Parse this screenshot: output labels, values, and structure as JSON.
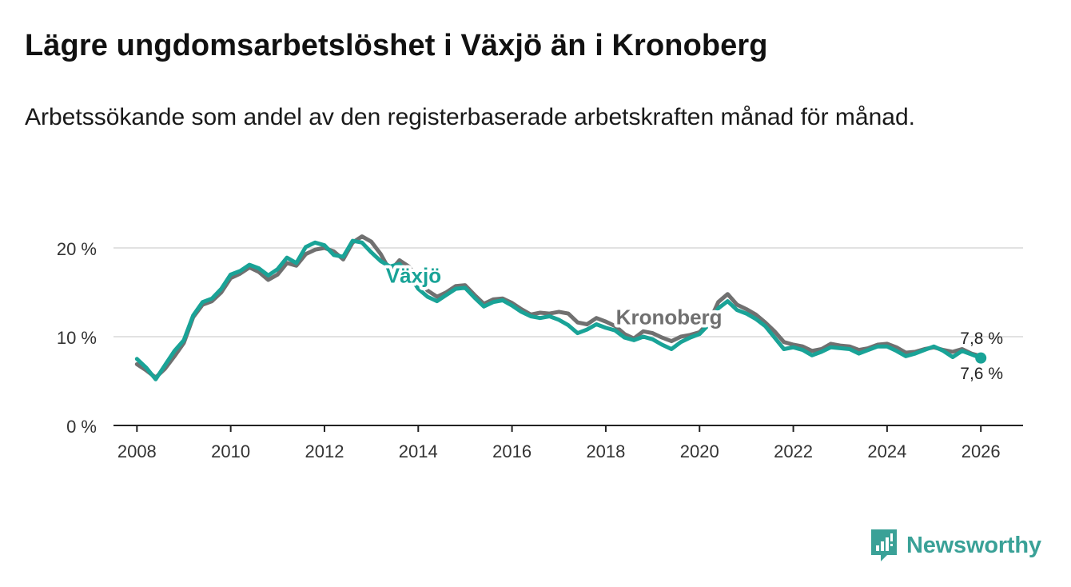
{
  "title": "Lägre ungdomsarbetslöshet i Växjö än i Kronoberg",
  "subtitle": "Arbetssökande som andel av den registerbaserade arbetskraften månad för månad.",
  "brand": {
    "name": "Newsworthy",
    "color": "#3aa197",
    "icon": "newsworthy-logo-icon"
  },
  "chart_data": {
    "type": "line",
    "title": "Lägre ungdomsarbetslöshet i Växjö än i Kronoberg",
    "xlabel": "",
    "ylabel": "",
    "xlim": [
      2007.5,
      2026.9
    ],
    "ylim": [
      0,
      20
    ],
    "grid": true,
    "x_ticks": [
      2008,
      2010,
      2012,
      2014,
      2016,
      2018,
      2020,
      2022,
      2024,
      2026
    ],
    "x_tick_labels": [
      "2008",
      "2010",
      "2012",
      "2014",
      "2016",
      "2018",
      "2020",
      "2022",
      "2024",
      "2026"
    ],
    "y_ticks": [
      0,
      10,
      20
    ],
    "y_tick_labels": [
      "0 %",
      "10 %",
      "20 %"
    ],
    "series": [
      {
        "name": "Kronoberg",
        "color": "#707070",
        "end_label": "7,8 %",
        "points": [
          [
            2008.0,
            6.9
          ],
          [
            2008.2,
            6.2
          ],
          [
            2008.4,
            5.4
          ],
          [
            2008.6,
            6.4
          ],
          [
            2008.8,
            7.8
          ],
          [
            2009.0,
            9.3
          ],
          [
            2009.2,
            12.2
          ],
          [
            2009.4,
            13.6
          ],
          [
            2009.6,
            14.0
          ],
          [
            2009.8,
            15.0
          ],
          [
            2010.0,
            16.6
          ],
          [
            2010.2,
            17.1
          ],
          [
            2010.4,
            17.8
          ],
          [
            2010.6,
            17.3
          ],
          [
            2010.8,
            16.4
          ],
          [
            2011.0,
            17.0
          ],
          [
            2011.2,
            18.3
          ],
          [
            2011.4,
            18.0
          ],
          [
            2011.6,
            19.3
          ],
          [
            2011.8,
            19.8
          ],
          [
            2012.0,
            20.0
          ],
          [
            2012.2,
            19.6
          ],
          [
            2012.4,
            18.7
          ],
          [
            2012.6,
            20.6
          ],
          [
            2012.8,
            21.3
          ],
          [
            2013.0,
            20.7
          ],
          [
            2013.2,
            19.3
          ],
          [
            2013.4,
            17.4
          ],
          [
            2013.6,
            18.6
          ],
          [
            2013.8,
            17.9
          ],
          [
            2014.0,
            16.4
          ],
          [
            2014.2,
            15.2
          ],
          [
            2014.4,
            14.5
          ],
          [
            2014.6,
            15.0
          ],
          [
            2014.8,
            15.7
          ],
          [
            2015.0,
            15.8
          ],
          [
            2015.2,
            14.7
          ],
          [
            2015.4,
            13.7
          ],
          [
            2015.6,
            14.2
          ],
          [
            2015.8,
            14.3
          ],
          [
            2016.0,
            13.8
          ],
          [
            2016.2,
            13.1
          ],
          [
            2016.4,
            12.5
          ],
          [
            2016.6,
            12.7
          ],
          [
            2016.8,
            12.6
          ],
          [
            2017.0,
            12.8
          ],
          [
            2017.2,
            12.6
          ],
          [
            2017.4,
            11.6
          ],
          [
            2017.6,
            11.4
          ],
          [
            2017.8,
            12.1
          ],
          [
            2018.0,
            11.7
          ],
          [
            2018.2,
            11.2
          ],
          [
            2018.4,
            10.3
          ],
          [
            2018.6,
            9.8
          ],
          [
            2018.8,
            10.6
          ],
          [
            2019.0,
            10.4
          ],
          [
            2019.2,
            9.9
          ],
          [
            2019.4,
            9.5
          ],
          [
            2019.6,
            10.0
          ],
          [
            2019.8,
            10.2
          ],
          [
            2020.0,
            10.5
          ],
          [
            2020.2,
            11.6
          ],
          [
            2020.4,
            13.9
          ],
          [
            2020.6,
            14.8
          ],
          [
            2020.8,
            13.6
          ],
          [
            2021.0,
            13.1
          ],
          [
            2021.2,
            12.5
          ],
          [
            2021.4,
            11.6
          ],
          [
            2021.6,
            10.6
          ],
          [
            2021.8,
            9.4
          ],
          [
            2022.0,
            9.1
          ],
          [
            2022.2,
            8.9
          ],
          [
            2022.4,
            8.4
          ],
          [
            2022.6,
            8.6
          ],
          [
            2022.8,
            9.2
          ],
          [
            2023.0,
            9.0
          ],
          [
            2023.2,
            8.9
          ],
          [
            2023.4,
            8.5
          ],
          [
            2023.6,
            8.7
          ],
          [
            2023.8,
            9.1
          ],
          [
            2024.0,
            9.2
          ],
          [
            2024.2,
            8.8
          ],
          [
            2024.4,
            8.2
          ],
          [
            2024.6,
            8.3
          ],
          [
            2024.8,
            8.6
          ],
          [
            2025.0,
            8.8
          ],
          [
            2025.2,
            8.5
          ],
          [
            2025.4,
            8.3
          ],
          [
            2025.6,
            8.6
          ],
          [
            2025.8,
            8.1
          ],
          [
            2026.0,
            7.8
          ]
        ]
      },
      {
        "name": "Växjö",
        "color": "#19a397",
        "end_label": "7,6 %",
        "points": [
          [
            2008.0,
            7.5
          ],
          [
            2008.2,
            6.5
          ],
          [
            2008.4,
            5.2
          ],
          [
            2008.6,
            6.8
          ],
          [
            2008.8,
            8.4
          ],
          [
            2009.0,
            9.6
          ],
          [
            2009.2,
            12.4
          ],
          [
            2009.4,
            13.9
          ],
          [
            2009.6,
            14.3
          ],
          [
            2009.8,
            15.4
          ],
          [
            2010.0,
            17.0
          ],
          [
            2010.2,
            17.4
          ],
          [
            2010.4,
            18.1
          ],
          [
            2010.6,
            17.7
          ],
          [
            2010.8,
            16.9
          ],
          [
            2011.0,
            17.6
          ],
          [
            2011.2,
            18.9
          ],
          [
            2011.4,
            18.3
          ],
          [
            2011.6,
            20.1
          ],
          [
            2011.8,
            20.6
          ],
          [
            2012.0,
            20.3
          ],
          [
            2012.2,
            19.2
          ],
          [
            2012.4,
            19.0
          ],
          [
            2012.6,
            20.8
          ],
          [
            2012.8,
            20.6
          ],
          [
            2013.0,
            19.5
          ],
          [
            2013.2,
            18.5
          ],
          [
            2013.4,
            17.9
          ],
          [
            2013.6,
            18.2
          ],
          [
            2013.8,
            17.0
          ],
          [
            2014.0,
            15.4
          ],
          [
            2014.2,
            14.5
          ],
          [
            2014.4,
            14.0
          ],
          [
            2014.6,
            14.7
          ],
          [
            2014.8,
            15.4
          ],
          [
            2015.0,
            15.5
          ],
          [
            2015.2,
            14.4
          ],
          [
            2015.4,
            13.4
          ],
          [
            2015.6,
            13.9
          ],
          [
            2015.8,
            14.1
          ],
          [
            2016.0,
            13.5
          ],
          [
            2016.2,
            12.8
          ],
          [
            2016.4,
            12.3
          ],
          [
            2016.6,
            12.1
          ],
          [
            2016.8,
            12.3
          ],
          [
            2017.0,
            11.9
          ],
          [
            2017.2,
            11.3
          ],
          [
            2017.4,
            10.4
          ],
          [
            2017.6,
            10.8
          ],
          [
            2017.8,
            11.4
          ],
          [
            2018.0,
            11.0
          ],
          [
            2018.2,
            10.7
          ],
          [
            2018.4,
            9.9
          ],
          [
            2018.6,
            9.6
          ],
          [
            2018.8,
            10.0
          ],
          [
            2019.0,
            9.7
          ],
          [
            2019.2,
            9.1
          ],
          [
            2019.4,
            8.6
          ],
          [
            2019.6,
            9.4
          ],
          [
            2019.8,
            9.9
          ],
          [
            2020.0,
            10.3
          ],
          [
            2020.2,
            11.4
          ],
          [
            2020.4,
            13.2
          ],
          [
            2020.6,
            14.0
          ],
          [
            2020.8,
            13.0
          ],
          [
            2021.0,
            12.6
          ],
          [
            2021.2,
            12.0
          ],
          [
            2021.4,
            11.2
          ],
          [
            2021.6,
            9.9
          ],
          [
            2021.8,
            8.6
          ],
          [
            2022.0,
            8.8
          ],
          [
            2022.2,
            8.5
          ],
          [
            2022.4,
            7.9
          ],
          [
            2022.6,
            8.3
          ],
          [
            2022.8,
            8.8
          ],
          [
            2023.0,
            8.7
          ],
          [
            2023.2,
            8.6
          ],
          [
            2023.4,
            8.1
          ],
          [
            2023.6,
            8.5
          ],
          [
            2023.8,
            8.9
          ],
          [
            2024.0,
            8.9
          ],
          [
            2024.2,
            8.4
          ],
          [
            2024.4,
            7.8
          ],
          [
            2024.6,
            8.1
          ],
          [
            2024.8,
            8.5
          ],
          [
            2025.0,
            8.9
          ],
          [
            2025.2,
            8.4
          ],
          [
            2025.4,
            7.7
          ],
          [
            2025.6,
            8.4
          ],
          [
            2025.8,
            8.0
          ],
          [
            2026.0,
            7.6
          ]
        ]
      }
    ],
    "annotations": [
      {
        "text": "Växjö",
        "series": "Växjö",
        "at_x": 2013.9,
        "at_y": 16.1
      },
      {
        "text": "Kronoberg",
        "series": "Kronoberg",
        "at_x": 2019.35,
        "at_y": 11.4
      }
    ]
  }
}
